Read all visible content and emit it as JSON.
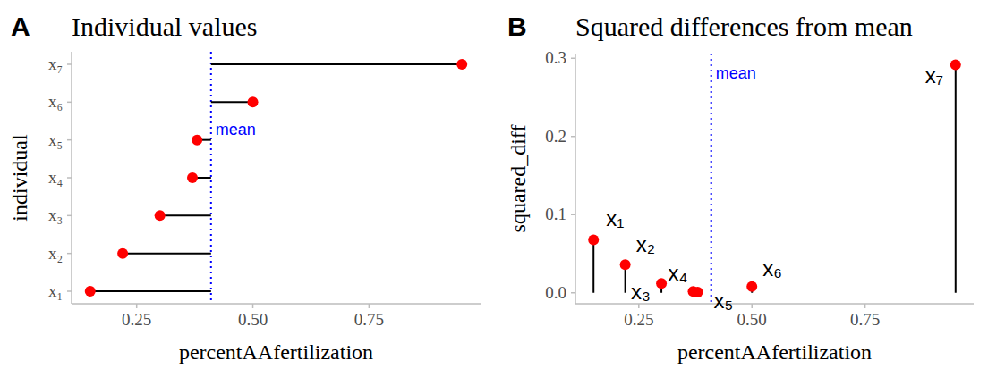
{
  "chart_data": [
    {
      "type": "lollipop",
      "orientation": "horizontal",
      "panel": "A",
      "title": "Individual values",
      "x_label": "percentAAfertilization",
      "y_label": "individual",
      "categories": [
        "x₁",
        "x₂",
        "x₃",
        "x₄",
        "x₅",
        "x₆",
        "x₇"
      ],
      "values": [
        0.15,
        0.22,
        0.3,
        0.37,
        0.38,
        0.5,
        0.95
      ],
      "color": "#ff0000",
      "annotations": [
        {
          "text": "mean",
          "value": 0.41,
          "color": "#0000ff"
        }
      ],
      "xlim": [
        0.11,
        0.99
      ],
      "xticks": [
        0.25,
        {
          "value": 0.5,
          "label": "0.50"
        },
        0.75
      ]
    },
    {
      "type": "lollipop",
      "panel": "B",
      "title": "Squared differences from mean",
      "x_label": "percentAAfertilization",
      "y_label": "squared_diff",
      "labels": [
        "x₁",
        "x₂",
        "x₃",
        "x₄",
        "x₅",
        "x₆",
        "x₇"
      ],
      "x": [
        0.15,
        0.22,
        0.3,
        0.37,
        0.38,
        0.5,
        0.95
      ],
      "values": [
        0.0676,
        0.0361,
        0.0121,
        0.0016,
        0.0009,
        0.0081,
        0.2916
      ],
      "color": "#ff0000",
      "annotations": [
        {
          "text": "mean",
          "value": 0.41,
          "color": "#0000ff"
        }
      ],
      "xlim": [
        0.11,
        0.99
      ],
      "xticks": [
        0.25,
        {
          "value": 0.5,
          "label": "0.50"
        },
        0.75
      ],
      "ylim": [
        -0.014,
        0.306
      ],
      "yticks": [
        {
          "value": 0,
          "label": "0.0"
        },
        0.1,
        0.2,
        0.3
      ]
    }
  ]
}
